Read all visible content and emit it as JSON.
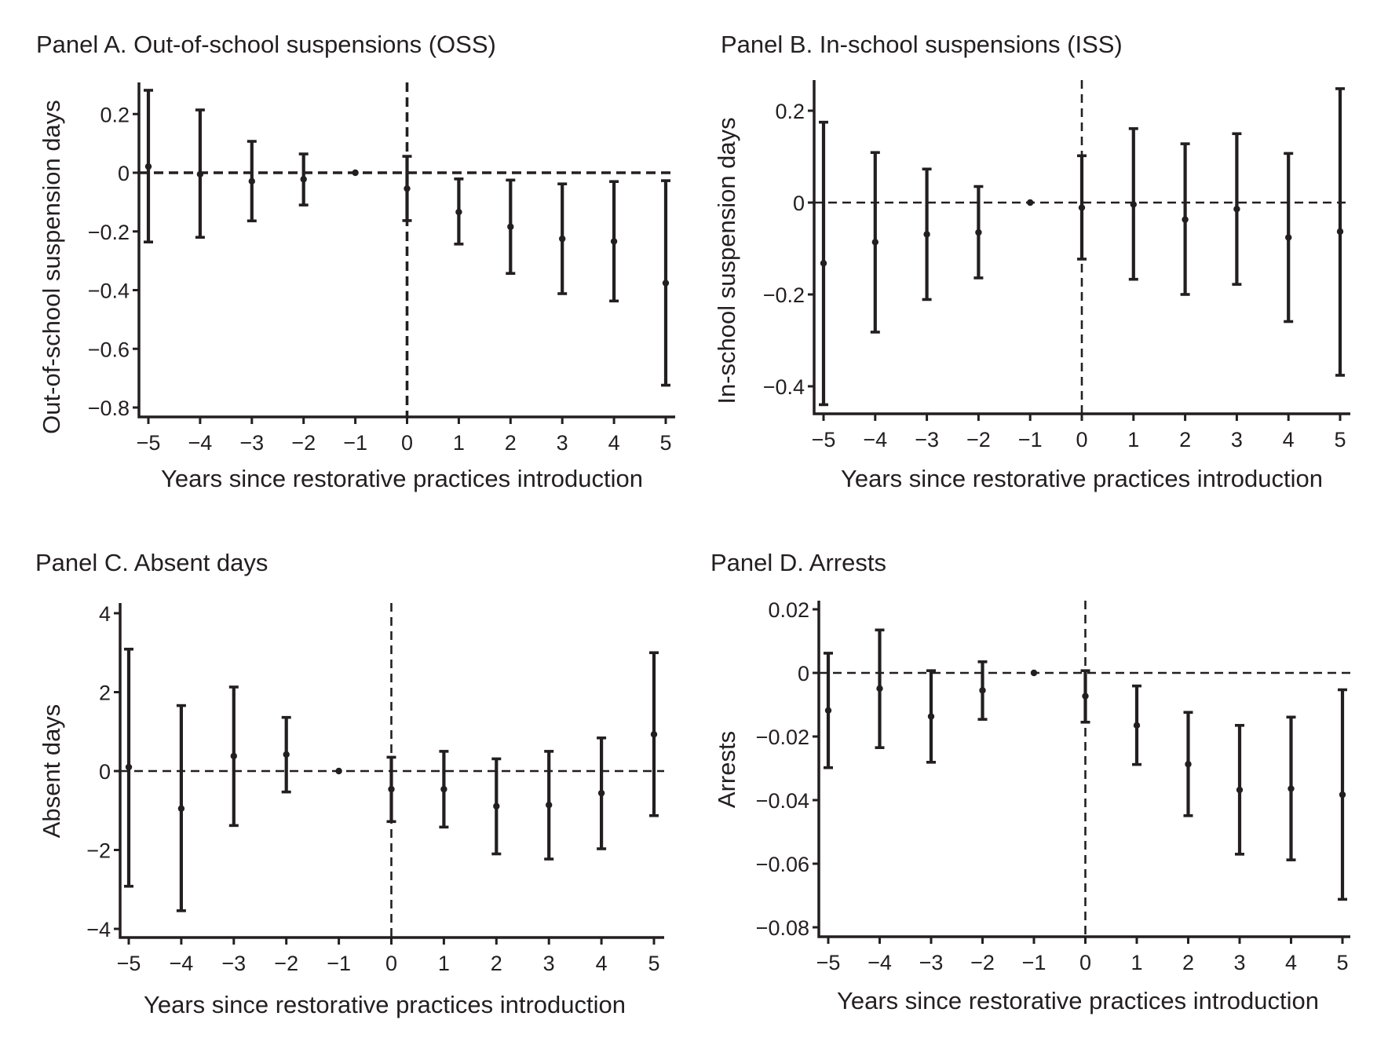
{
  "chart_data": [
    {
      "type": "scatter",
      "id": "panel-a",
      "title": "Panel A. Out-of-school suspensions (OSS)",
      "xlabel": "Years since restorative practices introduction",
      "ylabel": "Out-of-school suspension days",
      "x": [
        -5,
        -4,
        -3,
        -2,
        -1,
        0,
        1,
        2,
        3,
        4,
        5
      ],
      "x_tick_labels": [
        "−5",
        "−4",
        "−3",
        "−2",
        "−1",
        "0",
        "1",
        "2",
        "3",
        "4",
        "5"
      ],
      "series": [
        {
          "name": "estimate",
          "values": [
            0.021,
            -0.005,
            -0.029,
            -0.022,
            0,
            -0.054,
            -0.134,
            -0.184,
            -0.225,
            -0.234,
            -0.376
          ],
          "ci_upper": [
            0.281,
            0.214,
            0.107,
            0.064,
            0,
            0.056,
            -0.021,
            -0.025,
            -0.038,
            -0.03,
            -0.027
          ],
          "ci_lower": [
            -0.236,
            -0.22,
            -0.164,
            -0.11,
            0,
            -0.163,
            -0.243,
            -0.343,
            -0.412,
            -0.437,
            -0.724
          ]
        }
      ],
      "yticks": [
        0.2,
        0,
        -0.2,
        -0.4,
        -0.6,
        -0.8
      ],
      "y_tick_labels": [
        "0.2",
        "0",
        "−0.2",
        "−0.4",
        "−0.6",
        "−0.8"
      ],
      "ylim": [
        -0.83,
        0.31
      ],
      "xlim": [
        -5.2,
        5.2
      ],
      "reference_lines": {
        "horizontal": 0,
        "vertical": 0,
        "style": "dashed"
      },
      "grid": false
    },
    {
      "type": "scatter",
      "id": "panel-b",
      "title": "Panel B. In-school suspensions (ISS)",
      "xlabel": "Years since restorative practices introduction",
      "ylabel": "In-school suspension days",
      "x": [
        -5,
        -4,
        -3,
        -2,
        -1,
        0,
        1,
        2,
        3,
        4,
        5
      ],
      "x_tick_labels": [
        "−5",
        "−4",
        "−3",
        "−2",
        "−1",
        "0",
        "1",
        "2",
        "3",
        "4",
        "5"
      ],
      "series": [
        {
          "name": "estimate",
          "values": [
            -0.132,
            -0.086,
            -0.069,
            -0.065,
            0,
            -0.011,
            -0.004,
            -0.037,
            -0.014,
            -0.076,
            -0.063
          ],
          "ci_upper": [
            0.175,
            0.109,
            0.073,
            0.035,
            0,
            0.102,
            0.161,
            0.128,
            0.15,
            0.107,
            0.248
          ],
          "ci_lower": [
            -0.44,
            -0.282,
            -0.211,
            -0.164,
            0,
            -0.123,
            -0.167,
            -0.2,
            -0.178,
            -0.259,
            -0.376
          ]
        }
      ],
      "yticks": [
        0.2,
        0,
        -0.2,
        -0.4
      ],
      "y_tick_labels": [
        "0.2",
        "0",
        "−0.2",
        "−0.4"
      ],
      "ylim": [
        -0.458,
        0.267
      ],
      "xlim": [
        -5.2,
        5.2
      ],
      "reference_lines": {
        "horizontal": 0,
        "vertical": 0,
        "style": "dashed"
      },
      "grid": false
    },
    {
      "type": "scatter",
      "id": "panel-c",
      "title": "Panel C. Absent days",
      "xlabel": "Years since restorative practices introduction",
      "ylabel": "Absent days",
      "x": [
        -5,
        -4,
        -3,
        -2,
        -1,
        0,
        1,
        2,
        3,
        4,
        5
      ],
      "x_tick_labels": [
        "−5",
        "−4",
        "−3",
        "−2",
        "−1",
        "0",
        "1",
        "2",
        "3",
        "4",
        "5"
      ],
      "series": [
        {
          "name": "estimate",
          "values": [
            0.1,
            -0.95,
            0.38,
            0.42,
            0,
            -0.46,
            -0.46,
            -0.89,
            -0.86,
            -0.56,
            0.93
          ],
          "ci_upper": [
            3.09,
            1.66,
            2.13,
            1.36,
            0,
            0.35,
            0.5,
            0.31,
            0.5,
            0.84,
            3.0
          ],
          "ci_lower": [
            -2.92,
            -3.54,
            -1.38,
            -0.53,
            0,
            -1.28,
            -1.42,
            -2.1,
            -2.23,
            -1.97,
            -1.13
          ]
        }
      ],
      "yticks": [
        4,
        2,
        0,
        -2,
        -4
      ],
      "y_tick_labels": [
        "4",
        "2",
        "0",
        "−2",
        "−4"
      ],
      "ylim": [
        -4.25,
        4.2
      ],
      "xlim": [
        -5.2,
        5.2
      ],
      "reference_lines": {
        "horizontal": 0,
        "vertical": 0,
        "style": "dashed"
      },
      "grid": false
    },
    {
      "type": "scatter",
      "id": "panel-d",
      "title": "Panel D. Arrests",
      "xlabel": "Years since restorative practices introduction",
      "ylabel": "Arrests",
      "x": [
        -5,
        -4,
        -3,
        -2,
        -1,
        0,
        1,
        2,
        3,
        4,
        5
      ],
      "x_tick_labels": [
        "−5",
        "−4",
        "−3",
        "−2",
        "−1",
        "0",
        "1",
        "2",
        "3",
        "4",
        "5"
      ],
      "series": [
        {
          "name": "estimate",
          "values": [
            -0.0118,
            -0.0049,
            -0.0137,
            -0.0055,
            0,
            -0.0073,
            -0.0165,
            -0.0287,
            -0.0368,
            -0.0364,
            -0.0383
          ],
          "ci_upper": [
            0.0062,
            0.0135,
            0.0007,
            0.0035,
            0,
            0.0007,
            -0.0041,
            -0.0124,
            -0.0165,
            -0.0139,
            -0.0053
          ],
          "ci_lower": [
            -0.0298,
            -0.0235,
            -0.0281,
            -0.0146,
            0,
            -0.0155,
            -0.0288,
            -0.0449,
            -0.057,
            -0.0588,
            -0.0712
          ]
        }
      ],
      "yticks": [
        0.02,
        0,
        -0.02,
        -0.04,
        -0.06,
        -0.08
      ],
      "y_tick_labels": [
        "0.02",
        "0",
        "−0.02",
        "−0.04",
        "−0.06",
        "−0.08"
      ],
      "ylim": [
        -0.0835,
        0.0225
      ],
      "xlim": [
        -5.2,
        5.2
      ],
      "reference_lines": {
        "horizontal": 0,
        "vertical": 0,
        "style": "dashed"
      },
      "grid": false
    }
  ]
}
